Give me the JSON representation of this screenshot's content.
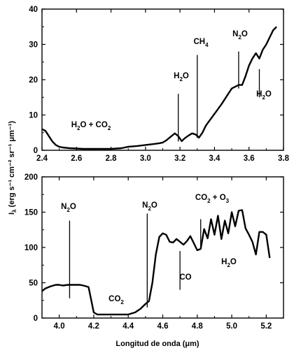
{
  "chart_data": [
    {
      "type": "line",
      "xlim": [
        2.4,
        3.8
      ],
      "ylim": [
        0,
        40
      ],
      "xticks": [
        "2.4",
        "2.6",
        "2.8",
        "3.0",
        "3.2",
        "3.4",
        "3.6",
        "3.8"
      ],
      "yticks": [
        "0",
        "10",
        "20",
        "30",
        "40"
      ],
      "grid": false,
      "annotations": [
        {
          "base": "H",
          "sub": "2",
          "tail": "O + CO",
          "sub2": "2",
          "tail2": ""
        },
        {
          "base": "H",
          "sub": "2",
          "tail": "O",
          "sub2": "",
          "tail2": ""
        },
        {
          "base": "CH",
          "sub": "4",
          "tail": "",
          "sub2": "",
          "tail2": ""
        },
        {
          "base": "N",
          "sub": "2",
          "tail": "O",
          "sub2": "",
          "tail2": ""
        },
        {
          "base": "H",
          "sub": "2",
          "tail": "O",
          "sub2": "",
          "tail2": ""
        }
      ],
      "series": [
        {
          "x": [
            2.4,
            2.42,
            2.44,
            2.46,
            2.48,
            2.5,
            2.52,
            2.56,
            2.6,
            2.64,
            2.7,
            2.76,
            2.8,
            2.86,
            2.9,
            2.95,
            3.0,
            3.05,
            3.08,
            3.1,
            3.12,
            3.15,
            3.17,
            3.19,
            3.21,
            3.23,
            3.25,
            3.27,
            3.29,
            3.31,
            3.33,
            3.35,
            3.38,
            3.41,
            3.44,
            3.46,
            3.48,
            3.5,
            3.52,
            3.54,
            3.56,
            3.58,
            3.6,
            3.62,
            3.64,
            3.66,
            3.68,
            3.7,
            3.72,
            3.74,
            3.76
          ],
          "y": [
            6,
            5.5,
            4,
            2.5,
            1.5,
            1,
            0.8,
            0.6,
            0.5,
            0.4,
            0.4,
            0.4,
            0.4,
            0.6,
            1,
            1.2,
            1.5,
            1.8,
            2,
            2.2,
            2.8,
            4,
            4.8,
            4,
            2.6,
            3.5,
            4.2,
            4.8,
            4.5,
            3.6,
            5,
            7,
            9,
            11,
            13,
            14.5,
            16,
            17.5,
            18,
            18.5,
            18.5,
            21,
            24,
            26,
            27.5,
            26,
            28.5,
            30,
            32,
            34,
            35
          ]
        }
      ]
    },
    {
      "type": "line",
      "xlim": [
        3.9,
        5.3
      ],
      "ylim": [
        0,
        200
      ],
      "xticks": [
        "4.0",
        "4.2",
        "4.4",
        "4.6",
        "4.8",
        "5.0",
        "5.2"
      ],
      "yticks": [
        "0",
        "50",
        "100",
        "150",
        "200"
      ],
      "grid": false,
      "annotations": [
        {
          "base": "N",
          "sub": "2",
          "tail": "O",
          "sub2": "",
          "tail2": ""
        },
        {
          "base": "CO",
          "sub": "2",
          "tail": "",
          "sub2": "",
          "tail2": ""
        },
        {
          "base": "N",
          "sub": "2",
          "tail": "O",
          "sub2": "",
          "tail2": ""
        },
        {
          "base": "CO",
          "sub": "2",
          "tail": " + O",
          "sub2": "3",
          "tail2": ""
        },
        {
          "base": "CO",
          "sub": "",
          "tail": "",
          "sub2": "",
          "tail2": ""
        },
        {
          "base": "H",
          "sub": "2",
          "tail": "O",
          "sub2": "",
          "tail2": ""
        }
      ],
      "series": [
        {
          "x": [
            3.9,
            3.92,
            3.95,
            3.98,
            4.0,
            4.02,
            4.05,
            4.08,
            4.1,
            4.12,
            4.14,
            4.17,
            4.2,
            4.22,
            4.26,
            4.3,
            4.35,
            4.4,
            4.44,
            4.47,
            4.5,
            4.52,
            4.54,
            4.56,
            4.58,
            4.6,
            4.62,
            4.64,
            4.66,
            4.68,
            4.7,
            4.72,
            4.74,
            4.76,
            4.78,
            4.8,
            4.82,
            4.84,
            4.86,
            4.88,
            4.9,
            4.92,
            4.94,
            4.96,
            4.98,
            5.0,
            5.02,
            5.04,
            5.06,
            5.08,
            5.1,
            5.12,
            5.14,
            5.16,
            5.18,
            5.2,
            5.22
          ],
          "y": [
            38,
            42,
            45,
            47,
            47,
            46,
            47,
            47,
            47,
            47,
            46,
            44,
            8,
            5,
            5,
            5,
            5,
            5,
            8,
            13,
            20,
            24,
            50,
            90,
            115,
            120,
            118,
            108,
            107,
            112,
            108,
            104,
            109,
            116,
            106,
            96,
            98,
            126,
            113,
            140,
            118,
            145,
            112,
            138,
            120,
            150,
            130,
            152,
            153,
            127,
            118,
            108,
            90,
            122,
            122,
            118,
            85
          ]
        }
      ]
    }
  ],
  "axes": {
    "ylabel_main": "I",
    "ylabel_sub": "λ",
    "ylabel_units": " (erg s⁻¹ cm⁻² sr⁻¹ μm⁻¹)",
    "xlabel": "Longitud de onda (μm)"
  }
}
